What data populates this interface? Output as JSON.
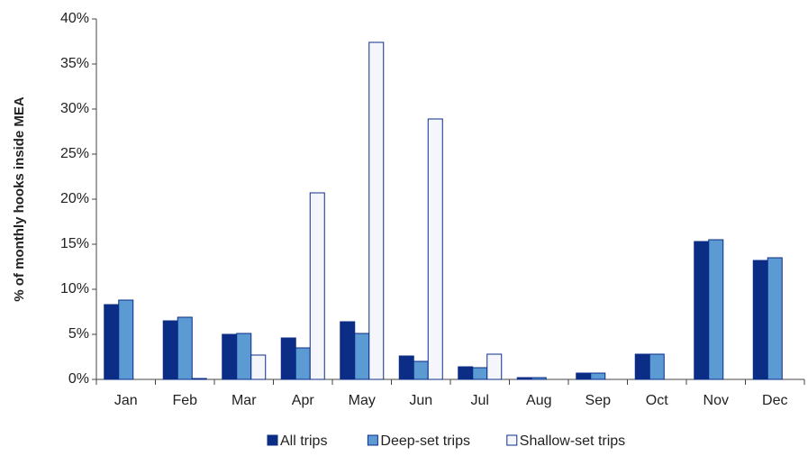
{
  "chart_data": {
    "type": "bar",
    "y_label": "% of monthly hooks inside MEA",
    "categories": [
      "Jan",
      "Feb",
      "Mar",
      "Apr",
      "May",
      "Jun",
      "Jul",
      "Aug",
      "Sep",
      "Oct",
      "Nov",
      "Dec"
    ],
    "series": [
      {
        "name": "All trips",
        "color": "#0b2d86",
        "values": [
          8.3,
          6.5,
          5.0,
          4.6,
          6.4,
          2.6,
          1.4,
          0.2,
          0.7,
          2.8,
          15.3,
          13.2
        ]
      },
      {
        "name": "Deep-set trips",
        "color": "#5b9ad3",
        "values": [
          8.8,
          6.9,
          5.1,
          3.5,
          5.1,
          2.0,
          1.3,
          0.2,
          0.7,
          2.8,
          15.5,
          13.5
        ]
      },
      {
        "name": "Shallow-set trips",
        "color": "#f4f6fc",
        "values": [
          0,
          0.1,
          2.7,
          20.7,
          37.4,
          28.9,
          2.8,
          0,
          0,
          0,
          0,
          0
        ]
      }
    ],
    "ylim": [
      0,
      40
    ],
    "yticks": [
      {
        "value": 0,
        "label": "0%"
      },
      {
        "value": 5,
        "label": "5%"
      },
      {
        "value": 10,
        "label": "10%"
      },
      {
        "value": 15,
        "label": "15%"
      },
      {
        "value": 20,
        "label": "20%"
      },
      {
        "value": 25,
        "label": "25%"
      },
      {
        "value": 30,
        "label": "30%"
      },
      {
        "value": 35,
        "label": "35%"
      },
      {
        "value": 40,
        "label": "40%"
      }
    ],
    "grid": false,
    "legend": "bottom"
  }
}
